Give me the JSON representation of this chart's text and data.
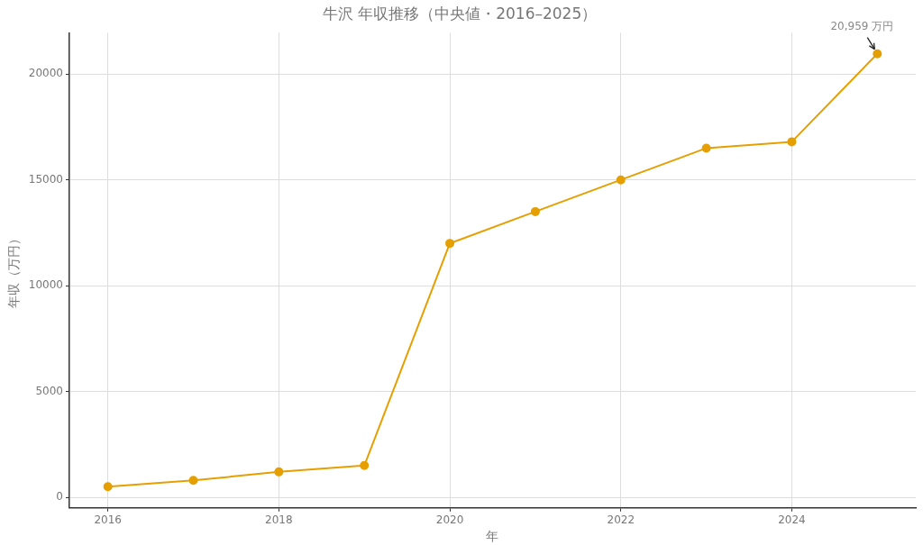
{
  "chart_data": {
    "type": "line",
    "title": "牛沢 年収推移（中央値・2016–2025）",
    "xlabel": "年",
    "ylabel": "年収（万円）",
    "x": [
      2016,
      2017,
      2018,
      2019,
      2020,
      2021,
      2022,
      2023,
      2024,
      2025
    ],
    "series": [
      {
        "color": "#e69f00",
        "values": [
          500,
          800,
          1200,
          1500,
          12000,
          13500,
          15000,
          16500,
          16800,
          20959
        ]
      }
    ],
    "xlim": [
      2015.55,
      2025.45
    ],
    "xticks": [
      2016,
      2018,
      2020,
      2022,
      2024
    ],
    "ylim": [
      -500,
      21950
    ],
    "yticks": [
      0,
      5000,
      10000,
      15000,
      20000
    ],
    "grid": true,
    "marker": "circle",
    "line_style": "solid",
    "legend": false,
    "annotations": [
      {
        "text": "20,959 万円",
        "x": 2025,
        "y": 20959
      }
    ]
  }
}
